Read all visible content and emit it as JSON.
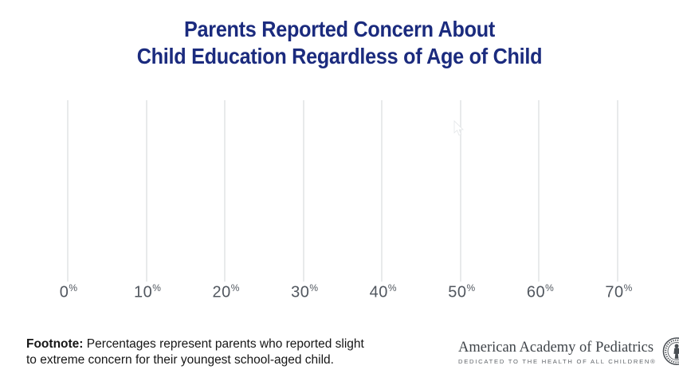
{
  "title": {
    "line1": "Parents Reported Concern About",
    "line2": "Child Education Regardless of Age of Child"
  },
  "chart_data": {
    "type": "bar",
    "orientation": "horizontal",
    "title": "Parents Reported Concern About Child Education Regardless of Age of Child",
    "xlabel": "",
    "ylabel": "",
    "x_tick_labels": [
      "0",
      "10",
      "20",
      "30",
      "40",
      "50",
      "60",
      "70"
    ],
    "x_tick_suffix": "%",
    "x_tick_values": [
      0,
      10,
      20,
      30,
      40,
      50,
      60,
      70
    ],
    "xlim": [
      0,
      70
    ],
    "grid": "vertical-gridlines-only",
    "legend": "none",
    "categories": [],
    "series": [],
    "bars_visible": false
  },
  "footnote": {
    "label": "Footnote:",
    "text": " Percentages represent parents who reported slight to extreme concern for their youngest school-aged child."
  },
  "logo": {
    "name": "American Academy of Pediatrics",
    "tagline": "DEDICATED TO THE HEALTH OF ALL CHILDREN®"
  },
  "colors": {
    "title_navy": "#1b2b7e",
    "axis_label_gray": "#51575f",
    "gridline_gray": "#e8eaeb",
    "footnote_black": "#161616",
    "logo_text_gray": "#3f4449",
    "logo_tagline_gray": "#5f6468"
  }
}
